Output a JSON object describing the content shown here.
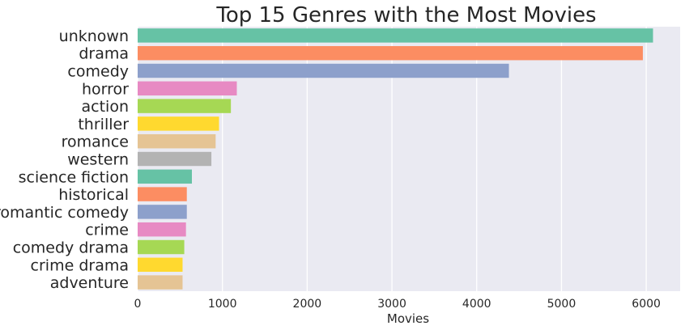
{
  "chart_data": {
    "type": "bar",
    "orientation": "horizontal",
    "title": "Top 15 Genres with the Most Movies",
    "xlabel": "Movies",
    "ylabel": "",
    "xlim": [
      0,
      6400
    ],
    "xticks": [
      0,
      1000,
      2000,
      3000,
      4000,
      5000,
      6000
    ],
    "grid": true,
    "categories": [
      "unknown",
      "drama",
      "comedy",
      "horror",
      "action",
      "thriller",
      "romance",
      "western",
      "science fiction",
      "historical",
      "romantic comedy",
      "crime",
      "comedy drama",
      "crime drama",
      "adventure"
    ],
    "values": [
      6080,
      5960,
      4380,
      1170,
      1100,
      960,
      920,
      870,
      640,
      580,
      580,
      570,
      550,
      530,
      530
    ],
    "colors": [
      "#66c2a5",
      "#fc8d62",
      "#8da0cb",
      "#e78ac3",
      "#a6d854",
      "#ffd92f",
      "#e5c494",
      "#b3b3b3",
      "#66c2a5",
      "#fc8d62",
      "#8da0cb",
      "#e78ac3",
      "#a6d854",
      "#ffd92f",
      "#e5c494"
    ],
    "background": "#eaeaf2"
  }
}
